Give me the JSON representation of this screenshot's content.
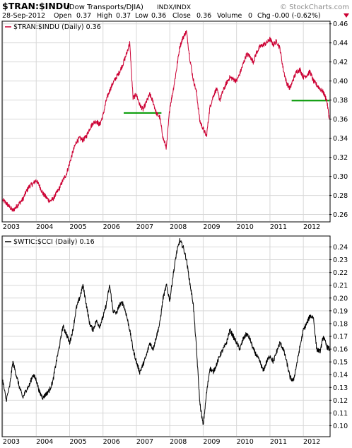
{
  "header": {
    "symbol": "$TRAN:$INDU",
    "description": "(Dow Transports/DJIA)",
    "exchange": "INDX/INDX",
    "brand": "© StockCharts.com",
    "date": "28-Sep-2012",
    "open_label": "Open",
    "open_value": "0.37",
    "high_label": "High",
    "high_value": "0.37",
    "low_label": "Low",
    "low_value": "0.36",
    "close_label": "Close",
    "close_value": "0.36",
    "volume_label": "Volume",
    "volume_value": "0",
    "chg_label": "Chg",
    "chg_value": "-0.00 (-0.62%)"
  },
  "colors": {
    "panel1_line": "#cc0033",
    "panel2_line": "#000000",
    "support_line": "#009900",
    "grid": "#d8d8d8",
    "frame": "#000000",
    "brand": "#8b8b8b"
  },
  "chart_data": [
    {
      "type": "line",
      "legend": "$TRAN:$INDU (Daily) 0.36",
      "x_tick_labels": [
        "2003",
        "2004",
        "2005",
        "2006",
        "2007",
        "2008",
        "2009",
        "2010",
        "2011",
        "2012"
      ],
      "y_tick_labels": [
        "0.26",
        "0.28",
        "0.30",
        "0.32",
        "0.34",
        "0.36",
        "0.38",
        "0.40",
        "0.42",
        "0.44",
        "0.46"
      ],
      "ylim": [
        0.253,
        0.462
      ],
      "xlim": [
        2003.0,
        2012.78
      ],
      "grid": true,
      "series": [
        {
          "x": [
            2003.0,
            2003.1,
            2003.2,
            2003.3,
            2003.4,
            2003.5,
            2003.6,
            2003.7,
            2003.8,
            2003.9,
            2004.0,
            2004.1,
            2004.2,
            2004.3,
            2004.4,
            2004.5,
            2004.6,
            2004.7,
            2004.8,
            2004.9,
            2005.0,
            2005.1,
            2005.2,
            2005.3,
            2005.4,
            2005.5,
            2005.6,
            2005.7,
            2005.8,
            2005.9,
            2006.0,
            2006.1,
            2006.2,
            2006.3,
            2006.4,
            2006.5,
            2006.6,
            2006.7,
            2006.8,
            2006.9,
            2007.0,
            2007.1,
            2007.2,
            2007.3,
            2007.4,
            2007.5,
            2007.6,
            2007.7,
            2007.8,
            2007.9,
            2008.0,
            2008.1,
            2008.2,
            2008.3,
            2008.4,
            2008.5,
            2008.6,
            2008.7,
            2008.8,
            2008.9,
            2009.0,
            2009.1,
            2009.2,
            2009.3,
            2009.4,
            2009.5,
            2009.6,
            2009.7,
            2009.8,
            2009.9,
            2010.0,
            2010.1,
            2010.2,
            2010.3,
            2010.4,
            2010.5,
            2010.6,
            2010.7,
            2010.8,
            2010.9,
            2011.0,
            2011.1,
            2011.2,
            2011.3,
            2011.4,
            2011.5,
            2011.6,
            2011.7,
            2011.8,
            2011.9,
            2012.0,
            2012.1,
            2012.2,
            2012.3,
            2012.4,
            2012.5,
            2012.6,
            2012.7,
            2012.78
          ],
          "y": [
            0.275,
            0.272,
            0.268,
            0.264,
            0.268,
            0.272,
            0.276,
            0.284,
            0.29,
            0.292,
            0.296,
            0.29,
            0.282,
            0.278,
            0.274,
            0.276,
            0.282,
            0.288,
            0.296,
            0.302,
            0.314,
            0.326,
            0.336,
            0.34,
            0.338,
            0.342,
            0.35,
            0.356,
            0.358,
            0.354,
            0.364,
            0.38,
            0.39,
            0.398,
            0.404,
            0.41,
            0.418,
            0.428,
            0.44,
            0.382,
            0.386,
            0.375,
            0.37,
            0.378,
            0.386,
            0.378,
            0.366,
            0.362,
            0.34,
            0.33,
            0.372,
            0.39,
            0.412,
            0.436,
            0.446,
            0.452,
            0.424,
            0.402,
            0.388,
            0.358,
            0.35,
            0.342,
            0.372,
            0.384,
            0.392,
            0.38,
            0.39,
            0.398,
            0.404,
            0.402,
            0.4,
            0.408,
            0.418,
            0.428,
            0.426,
            0.42,
            0.43,
            0.436,
            0.438,
            0.44,
            0.444,
            0.438,
            0.442,
            0.434,
            0.412,
            0.398,
            0.392,
            0.402,
            0.41,
            0.412,
            0.404,
            0.406,
            0.41,
            0.4,
            0.396,
            0.392,
            0.388,
            0.38,
            0.36
          ]
        }
      ],
      "support_lines": [
        {
          "x": [
            2006.62,
            2007.75
          ],
          "y": 0.3665
        },
        {
          "x": [
            2011.65,
            2012.78
          ],
          "y": 0.3795
        }
      ]
    },
    {
      "type": "line",
      "legend": "$WTIC:$CCI (Daily) 0.16",
      "x_tick_labels": [
        "2003",
        "2004",
        "2005",
        "2006",
        "2007",
        "2008",
        "2009",
        "2010",
        "2011",
        "2012"
      ],
      "y_tick_labels": [
        "0.10",
        "0.11",
        "0.12",
        "0.13",
        "0.14",
        "0.15",
        "0.16",
        "0.17",
        "0.18",
        "0.19",
        "0.20",
        "0.21",
        "0.22",
        "0.23",
        "0.24"
      ],
      "ylim": [
        0.092,
        0.248
      ],
      "xlim": [
        2003.0,
        2012.78
      ],
      "grid": true,
      "series": [
        {
          "x": [
            2003.0,
            2003.1,
            2003.2,
            2003.3,
            2003.4,
            2003.5,
            2003.6,
            2003.7,
            2003.8,
            2003.9,
            2004.0,
            2004.1,
            2004.2,
            2004.3,
            2004.4,
            2004.5,
            2004.6,
            2004.7,
            2004.8,
            2004.9,
            2005.0,
            2005.1,
            2005.2,
            2005.3,
            2005.4,
            2005.5,
            2005.6,
            2005.7,
            2005.8,
            2005.9,
            2006.0,
            2006.1,
            2006.2,
            2006.3,
            2006.4,
            2006.5,
            2006.6,
            2006.7,
            2006.8,
            2006.9,
            2007.0,
            2007.1,
            2007.2,
            2007.3,
            2007.4,
            2007.5,
            2007.6,
            2007.7,
            2007.8,
            2007.9,
            2008.0,
            2008.1,
            2008.2,
            2008.3,
            2008.4,
            2008.5,
            2008.6,
            2008.7,
            2008.8,
            2008.9,
            2009.0,
            2009.1,
            2009.2,
            2009.3,
            2009.4,
            2009.5,
            2009.6,
            2009.7,
            2009.8,
            2009.9,
            2010.0,
            2010.1,
            2010.2,
            2010.3,
            2010.4,
            2010.5,
            2010.6,
            2010.7,
            2010.8,
            2010.9,
            2011.0,
            2011.1,
            2011.2,
            2011.3,
            2011.4,
            2011.5,
            2011.6,
            2011.7,
            2011.8,
            2011.9,
            2012.0,
            2012.1,
            2012.2,
            2012.3,
            2012.4,
            2012.5,
            2012.6,
            2012.7,
            2012.78
          ],
          "y": [
            0.135,
            0.12,
            0.13,
            0.15,
            0.14,
            0.13,
            0.122,
            0.128,
            0.132,
            0.14,
            0.136,
            0.126,
            0.122,
            0.125,
            0.128,
            0.135,
            0.15,
            0.163,
            0.178,
            0.172,
            0.165,
            0.175,
            0.192,
            0.2,
            0.21,
            0.195,
            0.18,
            0.175,
            0.182,
            0.178,
            0.185,
            0.195,
            0.21,
            0.19,
            0.188,
            0.195,
            0.196,
            0.187,
            0.175,
            0.16,
            0.15,
            0.142,
            0.148,
            0.155,
            0.165,
            0.16,
            0.17,
            0.18,
            0.2,
            0.21,
            0.198,
            0.218,
            0.235,
            0.245,
            0.24,
            0.23,
            0.212,
            0.196,
            0.16,
            0.118,
            0.1,
            0.125,
            0.145,
            0.142,
            0.148,
            0.155,
            0.16,
            0.165,
            0.175,
            0.17,
            0.165,
            0.16,
            0.168,
            0.172,
            0.168,
            0.16,
            0.155,
            0.15,
            0.143,
            0.15,
            0.155,
            0.15,
            0.158,
            0.165,
            0.16,
            0.15,
            0.138,
            0.135,
            0.148,
            0.162,
            0.175,
            0.18,
            0.186,
            0.185,
            0.16,
            0.158,
            0.17,
            0.162,
            0.16
          ]
        }
      ]
    }
  ]
}
